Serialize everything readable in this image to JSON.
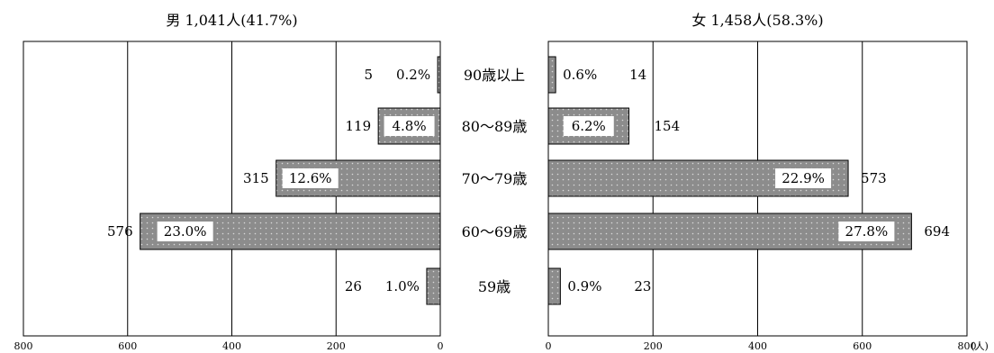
{
  "chart_data": {
    "type": "bar",
    "orientation": "horizontal",
    "layout": "population-pyramid",
    "categories": [
      "90歳以上",
      "80〜89歳",
      "70〜79歳",
      "60〜69歳",
      "59歳"
    ],
    "unit_label": "(人)",
    "xlim": [
      0,
      800
    ],
    "ticks": [
      0,
      200,
      400,
      600,
      800
    ],
    "grid": true,
    "series": [
      {
        "name": "男",
        "title": "男 1,041人(41.7%)",
        "values": [
          5,
          119,
          315,
          576,
          26
        ],
        "percents": [
          "0.2%",
          "4.8%",
          "12.6%",
          "23.0%",
          "1.0%"
        ]
      },
      {
        "name": "女",
        "title": "女 1,458人(58.3%)",
        "values": [
          14,
          154,
          573,
          694,
          23
        ],
        "percents": [
          "0.6%",
          "6.2%",
          "22.9%",
          "27.8%",
          "0.9%"
        ]
      }
    ],
    "colors": {
      "bar_fill": "#8c8c8c",
      "bar_dots": "#d9d9d9",
      "grid": "#000000"
    }
  }
}
